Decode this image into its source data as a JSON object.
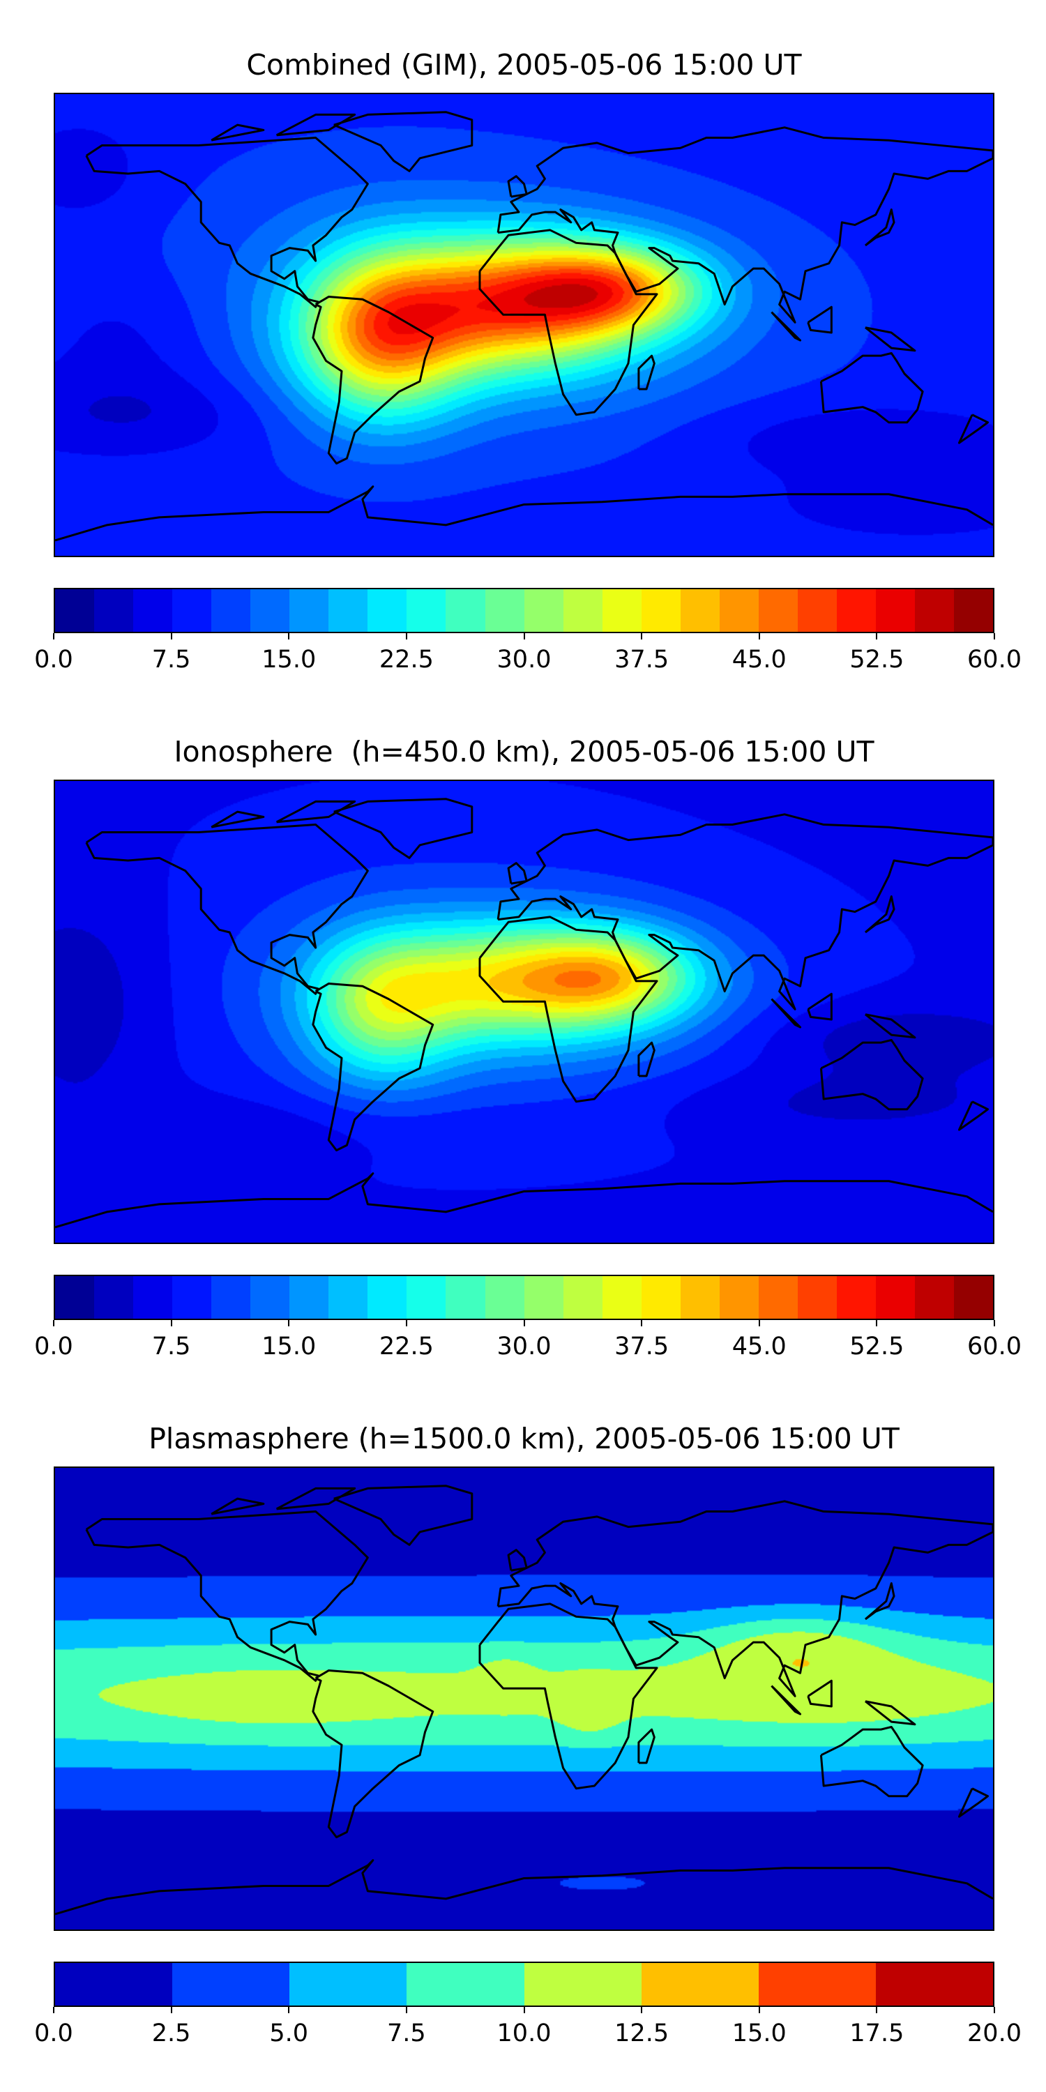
{
  "chart_data": [
    {
      "type": "heatmap",
      "title": "Combined (GIM), 2005-05-06 15:00 UT",
      "projection": "plate-carree world map with coastlines",
      "colormap": "jet",
      "vmin": 0,
      "vmax": 60,
      "levels": 24,
      "level_step": 2.5,
      "colorbar_ticks": [
        "0.0",
        "7.5",
        "15.0",
        "22.5",
        "30.0",
        "37.5",
        "45.0",
        "52.5",
        "60.0"
      ],
      "field_summary": {
        "max_region": "West Africa / equatorial Atlantic",
        "approx_max": 52.5,
        "approx_background": 7.5
      }
    },
    {
      "type": "heatmap",
      "title": "Ionosphere  (h=450.0 km), 2005-05-06 15:00 UT",
      "projection": "plate-carree world map with coastlines",
      "colormap": "jet",
      "vmin": 0,
      "vmax": 60,
      "levels": 24,
      "level_step": 2.5,
      "colorbar_ticks": [
        "0.0",
        "7.5",
        "15.0",
        "22.5",
        "30.0",
        "37.5",
        "45.0",
        "52.5",
        "60.0"
      ],
      "field_summary": {
        "max_region": "North Africa",
        "approx_max": 45.0,
        "approx_background": 5.0
      }
    },
    {
      "type": "heatmap",
      "title": "Plasmasphere (h=1500.0 km), 2005-05-06 15:00 UT",
      "projection": "plate-carree world map with coastlines",
      "colormap": "jet",
      "vmin": 0,
      "vmax": 20,
      "levels": 8,
      "level_step": 2.5,
      "colorbar_ticks": [
        "0.0",
        "2.5",
        "5.0",
        "7.5",
        "10.0",
        "12.5",
        "15.0",
        "17.5",
        "20.0"
      ],
      "field_summary": {
        "max_region": "South/East Asia, Central Africa",
        "approx_max": 12.5,
        "approx_background": 2.5
      }
    }
  ]
}
